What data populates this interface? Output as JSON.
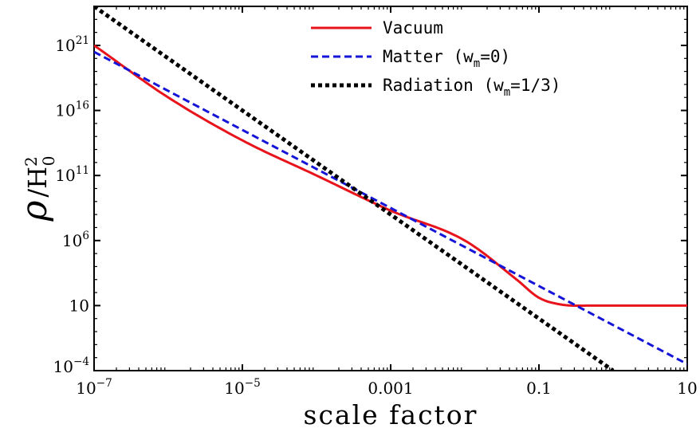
{
  "chart_data": {
    "type": "line",
    "xlabel": "scale factor",
    "ylabel": {
      "main": "ρ",
      "divider": "/",
      "base": "H",
      "sup": "2",
      "sub": "0"
    },
    "xscale": "log",
    "yscale": "log",
    "xlim": [
      1e-07,
      10
    ],
    "ylim": [
      0.0001,
      1e+24
    ],
    "grid": false,
    "legend_position": "top-right",
    "x_ticks": [
      {
        "value": 1e-07,
        "base": "10",
        "exp": "−7"
      },
      {
        "value": 1e-05,
        "base": "10",
        "exp": "−5"
      },
      {
        "value": 0.001,
        "base": "0.001",
        "exp": ""
      },
      {
        "value": 0.1,
        "base": "0.1",
        "exp": ""
      },
      {
        "value": 10,
        "base": "10",
        "exp": ""
      }
    ],
    "y_ticks": [
      {
        "value": 0.0001,
        "base": "10",
        "exp": "−4"
      },
      {
        "value": 10,
        "base": "10",
        "exp": ""
      },
      {
        "value": 1000000.0,
        "base": "10",
        "exp": "6"
      },
      {
        "value": 100000000000.0,
        "base": "10",
        "exp": "11"
      },
      {
        "value": 1e+16,
        "base": "10",
        "exp": "16"
      },
      {
        "value": 1e+21,
        "base": "10",
        "exp": "21"
      }
    ],
    "series": [
      {
        "name": "Vacuum",
        "color": "#e8141c",
        "style": "solid",
        "x": [
          1e-07,
          1e-06,
          1e-05,
          0.0001,
          0.001,
          0.01,
          0.05,
          0.1,
          0.2,
          0.5,
          1,
          10
        ],
        "y": [
          1e+21,
          1e+17,
          50000000000000.0,
          100000000000.0,
          200000000.0,
          1000000.0,
          1000.0,
          40,
          12,
          10,
          10,
          10
        ]
      },
      {
        "name": "Matter",
        "name_sub": "m",
        "name_tail": "=0)",
        "name_prefix": " (w",
        "color": "#1515d8",
        "style": "dashed",
        "x": [
          1e-07,
          10
        ],
        "y": [
          3.16e+20,
          0.000316
        ]
      },
      {
        "name": "Radiation",
        "name_sub": "m",
        "name_tail": "=1/3)",
        "name_prefix": " (w",
        "color": "#000000",
        "style": "dotted",
        "x": [
          1e-07,
          1
        ],
        "y": [
          1e+24,
          0.0001
        ]
      }
    ]
  }
}
